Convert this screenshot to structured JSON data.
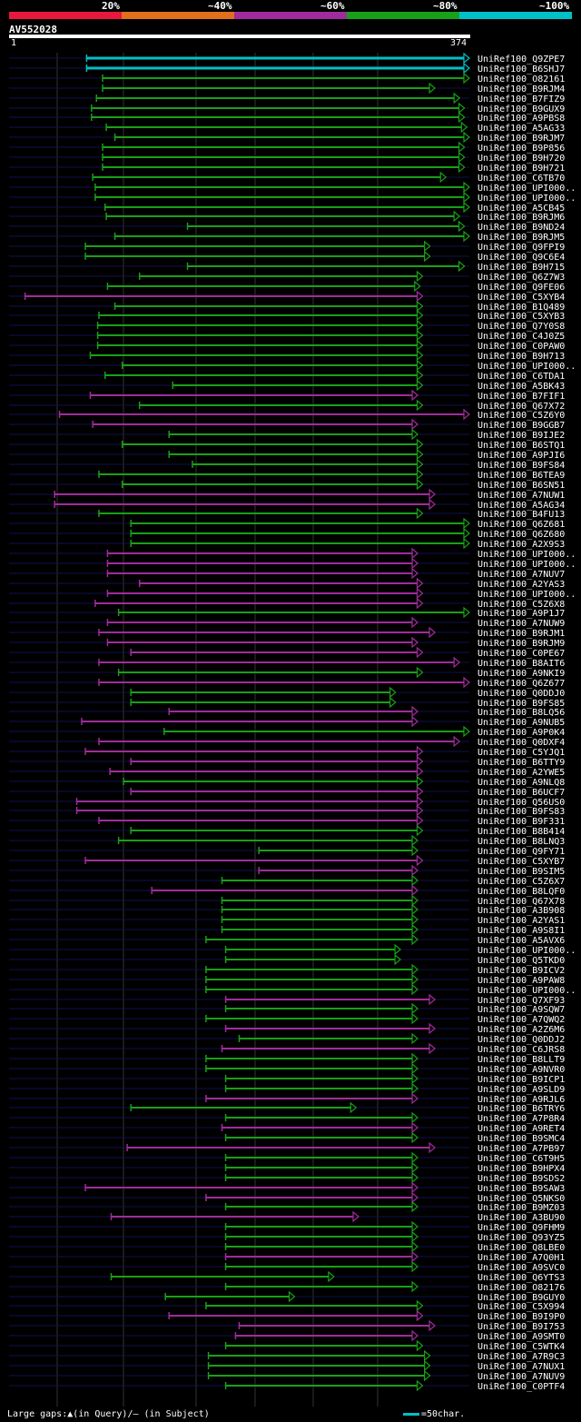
{
  "legend": {
    "labels": [
      "20%",
      "~40%",
      "~60%",
      "~80%",
      "~100%"
    ],
    "colors": [
      "#e8183c",
      "#e0701c",
      "#a02c9c",
      "#18a018",
      "#00c0c8"
    ]
  },
  "query": {
    "name": "AV552028",
    "start": "1",
    "end": "374",
    "length": 374
  },
  "footer": {
    "gaps_text": "Large gaps:▲(in Query)/– (in Subject)",
    "scale_text": "=50char."
  },
  "hits": [
    {
      "name": "UniRef100_Q9ZPE7",
      "start": 63,
      "end": 374,
      "color": "cyan"
    },
    {
      "name": "UniRef100_B6SHJ7",
      "start": 63,
      "end": 374,
      "color": "cyan"
    },
    {
      "name": "UniRef100_O82161",
      "start": 76,
      "end": 374,
      "color": "green"
    },
    {
      "name": "UniRef100_B9RJM4",
      "start": 76,
      "end": 346,
      "color": "green"
    },
    {
      "name": "UniRef100_B7FIZ9",
      "start": 71,
      "end": 366,
      "color": "green"
    },
    {
      "name": "UniRef100_B9GUX9",
      "start": 67,
      "end": 370,
      "color": "green"
    },
    {
      "name": "UniRef100_A9PBS8",
      "start": 67,
      "end": 370,
      "color": "green"
    },
    {
      "name": "UniRef100_A5AG33",
      "start": 79,
      "end": 372,
      "color": "green"
    },
    {
      "name": "UniRef100_B9RJM7",
      "start": 86,
      "end": 374,
      "color": "green"
    },
    {
      "name": "UniRef100_B9P856",
      "start": 76,
      "end": 370,
      "color": "green"
    },
    {
      "name": "UniRef100_B9H720",
      "start": 76,
      "end": 370,
      "color": "green"
    },
    {
      "name": "UniRef100_B9H721",
      "start": 76,
      "end": 370,
      "color": "green"
    },
    {
      "name": "UniRef100_C6TB70",
      "start": 68,
      "end": 355,
      "color": "green"
    },
    {
      "name": "UniRef100_UPI000..",
      "start": 70,
      "end": 374,
      "color": "green"
    },
    {
      "name": "UniRef100_UPI000..",
      "start": 70,
      "end": 374,
      "color": "green"
    },
    {
      "name": "UniRef100_A5CB45",
      "start": 78,
      "end": 374,
      "color": "green"
    },
    {
      "name": "UniRef100_B9RJM6",
      "start": 79,
      "end": 366,
      "color": "green"
    },
    {
      "name": "UniRef100_B9ND24",
      "start": 145,
      "end": 370,
      "color": "green"
    },
    {
      "name": "UniRef100_B9RJM5",
      "start": 86,
      "end": 374,
      "color": "green"
    },
    {
      "name": "UniRef100_Q9FPI9",
      "start": 62,
      "end": 342,
      "color": "green"
    },
    {
      "name": "UniRef100_Q9C6E4",
      "start": 62,
      "end": 342,
      "color": "green"
    },
    {
      "name": "UniRef100_B9H715",
      "start": 145,
      "end": 370,
      "color": "green"
    },
    {
      "name": "UniRef100_Q6Z7W3",
      "start": 106,
      "end": 336,
      "color": "green"
    },
    {
      "name": "UniRef100_Q9FE06",
      "start": 80,
      "end": 334,
      "color": "green"
    },
    {
      "name": "UniRef100_C5XYB4",
      "start": 13,
      "end": 336,
      "color": "purple"
    },
    {
      "name": "UniRef100_B1Q489",
      "start": 86,
      "end": 336,
      "color": "green"
    },
    {
      "name": "UniRef100_C5XYB3",
      "start": 73,
      "end": 336,
      "color": "green"
    },
    {
      "name": "UniRef100_Q7Y0S8",
      "start": 72,
      "end": 336,
      "color": "green"
    },
    {
      "name": "UniRef100_C4J0Z5",
      "start": 72,
      "end": 336,
      "color": "green"
    },
    {
      "name": "UniRef100_C0PAW0",
      "start": 72,
      "end": 336,
      "color": "green"
    },
    {
      "name": "UniRef100_B9H713",
      "start": 66,
      "end": 336,
      "color": "green"
    },
    {
      "name": "UniRef100_UPI000..",
      "start": 92,
      "end": 336,
      "color": "green"
    },
    {
      "name": "UniRef100_C6TDA1",
      "start": 78,
      "end": 336,
      "color": "green"
    },
    {
      "name": "UniRef100_A5BK43",
      "start": 133,
      "end": 336,
      "color": "green"
    },
    {
      "name": "UniRef100_B7FIF1",
      "start": 66,
      "end": 332,
      "color": "purple"
    },
    {
      "name": "UniRef100_Q67X72",
      "start": 106,
      "end": 336,
      "color": "green"
    },
    {
      "name": "UniRef100_C5Z6Y0",
      "start": 41,
      "end": 374,
      "color": "purple"
    },
    {
      "name": "UniRef100_B9GGB7",
      "start": 68,
      "end": 332,
      "color": "purple"
    },
    {
      "name": "UniRef100_B9IJE2",
      "start": 130,
      "end": 332,
      "color": "green"
    },
    {
      "name": "UniRef100_B6STQ1",
      "start": 92,
      "end": 336,
      "color": "green"
    },
    {
      "name": "UniRef100_A9PJI6",
      "start": 130,
      "end": 336,
      "color": "green"
    },
    {
      "name": "UniRef100_B9FS84",
      "start": 149,
      "end": 336,
      "color": "green"
    },
    {
      "name": "UniRef100_B6TEA9",
      "start": 73,
      "end": 336,
      "color": "green"
    },
    {
      "name": "UniRef100_B6SN51",
      "start": 92,
      "end": 336,
      "color": "green"
    },
    {
      "name": "UniRef100_A7NUW1",
      "start": 37,
      "end": 346,
      "color": "purple"
    },
    {
      "name": "UniRef100_A5AG34",
      "start": 37,
      "end": 346,
      "color": "purple"
    },
    {
      "name": "UniRef100_B4FU13",
      "start": 73,
      "end": 336,
      "color": "green"
    },
    {
      "name": "UniRef100_Q6Z681",
      "start": 99,
      "end": 374,
      "color": "green"
    },
    {
      "name": "UniRef100_Q6Z680",
      "start": 99,
      "end": 374,
      "color": "green"
    },
    {
      "name": "UniRef100_A2X9S3",
      "start": 99,
      "end": 374,
      "color": "green"
    },
    {
      "name": "UniRef100_UPI000..",
      "start": 80,
      "end": 332,
      "color": "purple"
    },
    {
      "name": "UniRef100_UPI000..",
      "start": 80,
      "end": 332,
      "color": "purple"
    },
    {
      "name": "UniRef100_A7NUV7",
      "start": 80,
      "end": 332,
      "color": "purple"
    },
    {
      "name": "UniRef100_A2YAS3",
      "start": 106,
      "end": 336,
      "color": "purple"
    },
    {
      "name": "UniRef100_UPI000..",
      "start": 80,
      "end": 336,
      "color": "purple"
    },
    {
      "name": "UniRef100_C5Z6X8",
      "start": 70,
      "end": 336,
      "color": "purple"
    },
    {
      "name": "UniRef100_A9P1J7",
      "start": 89,
      "end": 374,
      "color": "green"
    },
    {
      "name": "UniRef100_A7NUW9",
      "start": 80,
      "end": 332,
      "color": "purple"
    },
    {
      "name": "UniRef100_B9RJM1",
      "start": 73,
      "end": 346,
      "color": "purple"
    },
    {
      "name": "UniRef100_B9RJM9",
      "start": 80,
      "end": 332,
      "color": "purple"
    },
    {
      "name": "UniRef100_C0PE67",
      "start": 99,
      "end": 336,
      "color": "purple"
    },
    {
      "name": "UniRef100_B8AIT6",
      "start": 73,
      "end": 366,
      "color": "purple"
    },
    {
      "name": "UniRef100_A9NKI9",
      "start": 89,
      "end": 336,
      "color": "green"
    },
    {
      "name": "UniRef100_Q6Z677",
      "start": 73,
      "end": 374,
      "color": "purple"
    },
    {
      "name": "UniRef100_Q0DDJ0",
      "start": 99,
      "end": 314,
      "color": "green"
    },
    {
      "name": "UniRef100_B9FS85",
      "start": 99,
      "end": 314,
      "color": "green"
    },
    {
      "name": "UniRef100_B8LQ56",
      "start": 130,
      "end": 332,
      "color": "purple"
    },
    {
      "name": "UniRef100_A9NUB5",
      "start": 59,
      "end": 332,
      "color": "purple"
    },
    {
      "name": "UniRef100_A9P0K4",
      "start": 126,
      "end": 374,
      "color": "green"
    },
    {
      "name": "UniRef100_Q0DXF4",
      "start": 73,
      "end": 366,
      "color": "purple"
    },
    {
      "name": "UniRef100_C5YJQ1",
      "start": 62,
      "end": 336,
      "color": "purple"
    },
    {
      "name": "UniRef100_B6TTY9",
      "start": 99,
      "end": 336,
      "color": "purple"
    },
    {
      "name": "UniRef100_A2YWE5",
      "start": 82,
      "end": 336,
      "color": "purple"
    },
    {
      "name": "UniRef100_A9NLQ8",
      "start": 93,
      "end": 336,
      "color": "green"
    },
    {
      "name": "UniRef100_B6UCF7",
      "start": 99,
      "end": 336,
      "color": "purple"
    },
    {
      "name": "UniRef100_Q56US0",
      "start": 55,
      "end": 336,
      "color": "purple"
    },
    {
      "name": "UniRef100_B9FS83",
      "start": 55,
      "end": 336,
      "color": "purple"
    },
    {
      "name": "UniRef100_B9F331",
      "start": 73,
      "end": 336,
      "color": "purple"
    },
    {
      "name": "UniRef100_B8B414",
      "start": 99,
      "end": 336,
      "color": "green"
    },
    {
      "name": "UniRef100_B8LNQ3",
      "start": 89,
      "end": 332,
      "color": "green"
    },
    {
      "name": "UniRef100_Q9FY71",
      "start": 203,
      "end": 332,
      "color": "green"
    },
    {
      "name": "UniRef100_C5XYB7",
      "start": 62,
      "end": 336,
      "color": "purple"
    },
    {
      "name": "UniRef100_B9SIM5",
      "start": 203,
      "end": 332,
      "color": "purple"
    },
    {
      "name": "UniRef100_C5Z6X7",
      "start": 173,
      "end": 332,
      "color": "green"
    },
    {
      "name": "UniRef100_B8LQF0",
      "start": 116,
      "end": 332,
      "color": "purple"
    },
    {
      "name": "UniRef100_Q67X78",
      "start": 173,
      "end": 332,
      "color": "green"
    },
    {
      "name": "UniRef100_A3B908",
      "start": 173,
      "end": 332,
      "color": "green"
    },
    {
      "name": "UniRef100_A2YAS1",
      "start": 173,
      "end": 332,
      "color": "green"
    },
    {
      "name": "UniRef100_A9S8I1",
      "start": 173,
      "end": 332,
      "color": "green"
    },
    {
      "name": "UniRef100_A5AVX6",
      "start": 160,
      "end": 332,
      "color": "green"
    },
    {
      "name": "UniRef100_UPI000..",
      "start": 176,
      "end": 318,
      "color": "green"
    },
    {
      "name": "UniRef100_Q5TKD0",
      "start": 176,
      "end": 318,
      "color": "green"
    },
    {
      "name": "UniRef100_B9ICV2",
      "start": 160,
      "end": 332,
      "color": "green"
    },
    {
      "name": "UniRef100_A9PAW8",
      "start": 160,
      "end": 332,
      "color": "green"
    },
    {
      "name": "UniRef100_UPI000..",
      "start": 160,
      "end": 332,
      "color": "green"
    },
    {
      "name": "UniRef100_Q7XF93",
      "start": 176,
      "end": 346,
      "color": "purple"
    },
    {
      "name": "UniRef100_A9SQW7",
      "start": 176,
      "end": 332,
      "color": "green"
    },
    {
      "name": "UniRef100_A7QWQ2",
      "start": 160,
      "end": 332,
      "color": "green"
    },
    {
      "name": "UniRef100_A2Z6M6",
      "start": 176,
      "end": 346,
      "color": "purple"
    },
    {
      "name": "UniRef100_Q0DDJ2",
      "start": 187,
      "end": 332,
      "color": "green"
    },
    {
      "name": "UniRef100_C6JRS8",
      "start": 173,
      "end": 346,
      "color": "purple"
    },
    {
      "name": "UniRef100_B8LLT9",
      "start": 160,
      "end": 332,
      "color": "green"
    },
    {
      "name": "UniRef100_A9NVR0",
      "start": 160,
      "end": 332,
      "color": "green"
    },
    {
      "name": "UniRef100_B9ICP1",
      "start": 176,
      "end": 332,
      "color": "green"
    },
    {
      "name": "UniRef100_A9SLD9",
      "start": 176,
      "end": 332,
      "color": "green"
    },
    {
      "name": "UniRef100_A9RJL6",
      "start": 160,
      "end": 332,
      "color": "purple"
    },
    {
      "name": "UniRef100_B6TRY6",
      "start": 99,
      "end": 282,
      "color": "green"
    },
    {
      "name": "UniRef100_A7P8R4",
      "start": 176,
      "end": 332,
      "color": "green"
    },
    {
      "name": "UniRef100_A9RET4",
      "start": 173,
      "end": 332,
      "color": "purple"
    },
    {
      "name": "UniRef100_B9SMC4",
      "start": 176,
      "end": 332,
      "color": "green"
    },
    {
      "name": "UniRef100_A7PB97",
      "start": 96,
      "end": 346,
      "color": "purple"
    },
    {
      "name": "UniRef100_C6T9H5",
      "start": 176,
      "end": 332,
      "color": "green"
    },
    {
      "name": "UniRef100_B9HPX4",
      "start": 176,
      "end": 332,
      "color": "green"
    },
    {
      "name": "UniRef100_B9SDS2",
      "start": 176,
      "end": 332,
      "color": "green"
    },
    {
      "name": "UniRef100_B9SAW3",
      "start": 62,
      "end": 332,
      "color": "purple"
    },
    {
      "name": "UniRef100_Q5NKS0",
      "start": 160,
      "end": 332,
      "color": "purple"
    },
    {
      "name": "UniRef100_B9MZ03",
      "start": 176,
      "end": 332,
      "color": "green"
    },
    {
      "name": "UniRef100_A3BU90",
      "start": 83,
      "end": 284,
      "color": "purple"
    },
    {
      "name": "UniRef100_Q9FHM9",
      "start": 176,
      "end": 332,
      "color": "green"
    },
    {
      "name": "UniRef100_Q93YZ5",
      "start": 176,
      "end": 332,
      "color": "green"
    },
    {
      "name": "UniRef100_Q8LBE0",
      "start": 176,
      "end": 332,
      "color": "green"
    },
    {
      "name": "UniRef100_A7Q0H1",
      "start": 176,
      "end": 332,
      "color": "purple"
    },
    {
      "name": "UniRef100_A9SVC0",
      "start": 176,
      "end": 332,
      "color": "green"
    },
    {
      "name": "UniRef100_Q6YTS3",
      "start": 83,
      "end": 264,
      "color": "green"
    },
    {
      "name": "UniRef100_O82176",
      "start": 176,
      "end": 332,
      "color": "green"
    },
    {
      "name": "UniRef100_B9GUY0",
      "start": 127,
      "end": 232,
      "color": "green"
    },
    {
      "name": "UniRef100_C5X994",
      "start": 160,
      "end": 336,
      "color": "green"
    },
    {
      "name": "UniRef100_B9I9P0",
      "start": 130,
      "end": 336,
      "color": "purple"
    },
    {
      "name": "UniRef100_B9I753",
      "start": 187,
      "end": 346,
      "color": "purple"
    },
    {
      "name": "UniRef100_A9SMT0",
      "start": 184,
      "end": 332,
      "color": "purple"
    },
    {
      "name": "UniRef100_C5WTK4",
      "start": 176,
      "end": 336,
      "color": "green"
    },
    {
      "name": "UniRef100_A7R9C3",
      "start": 162,
      "end": 342,
      "color": "green"
    },
    {
      "name": "UniRef100_A7NUX1",
      "start": 162,
      "end": 342,
      "color": "green"
    },
    {
      "name": "UniRef100_A7NUV9",
      "start": 162,
      "end": 342,
      "color": "green"
    },
    {
      "name": "UniRef100_C0PTF4",
      "start": 176,
      "end": 336,
      "color": "green"
    }
  ]
}
